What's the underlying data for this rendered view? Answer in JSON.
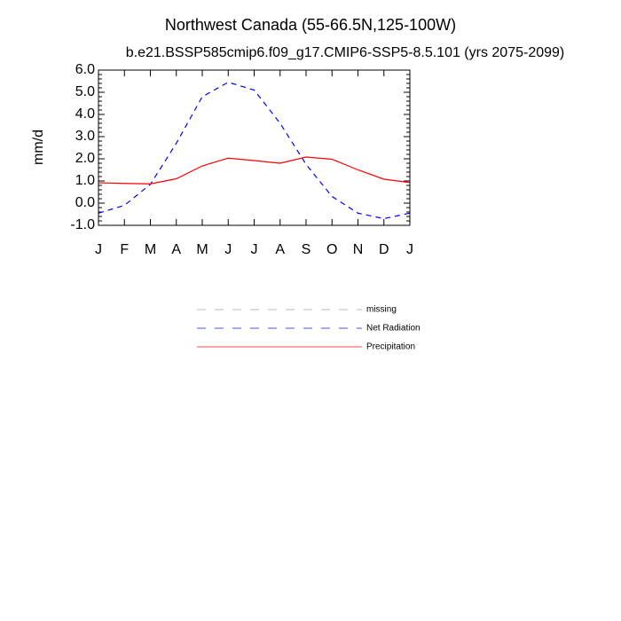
{
  "chart_data": {
    "type": "line",
    "title": "Northwest Canada (55-66.5N,125-100W)",
    "subtitle": "b.e21.BSSP585cmip6.f09_g17.CMIP6-SSP5-8.5.101 (yrs 2075-2099)",
    "y_label": "mm/d",
    "categories": [
      "J",
      "F",
      "M",
      "A",
      "M",
      "J",
      "J",
      "A",
      "S",
      "O",
      "N",
      "D",
      "J"
    ],
    "series": [
      {
        "name": "missing",
        "color": "#999999",
        "line_style": "dashed",
        "values": [
          null,
          null,
          null,
          null,
          null,
          null,
          null,
          null,
          null,
          null,
          null,
          null,
          null
        ]
      },
      {
        "name": "Net Radiation",
        "color": "#0000ff",
        "line_style": "dashed",
        "values": [
          -0.45,
          -0.1,
          0.85,
          2.7,
          4.8,
          5.45,
          5.1,
          3.6,
          1.75,
          0.3,
          -0.45,
          -0.7,
          -0.45
        ]
      },
      {
        "name": "Precipitation",
        "color": "#ff0000",
        "line_style": "solid",
        "values": [
          0.92,
          0.89,
          0.87,
          1.1,
          1.68,
          2.03,
          1.92,
          1.8,
          2.08,
          1.98,
          1.5,
          1.08,
          0.93
        ]
      }
    ],
    "ylim": [
      -1,
      6
    ],
    "yticks": [
      {
        "value": 6,
        "label": "6.0"
      },
      {
        "value": 5,
        "label": "5.0"
      },
      {
        "value": 4,
        "label": "4.0"
      },
      {
        "value": 3,
        "label": "3.0"
      },
      {
        "value": 2,
        "label": "2.0"
      },
      {
        "value": 1,
        "label": "1.0"
      },
      {
        "value": 0,
        "label": "0.0"
      },
      {
        "value": -1,
        "label": "-1.0"
      }
    ],
    "grid": false
  }
}
